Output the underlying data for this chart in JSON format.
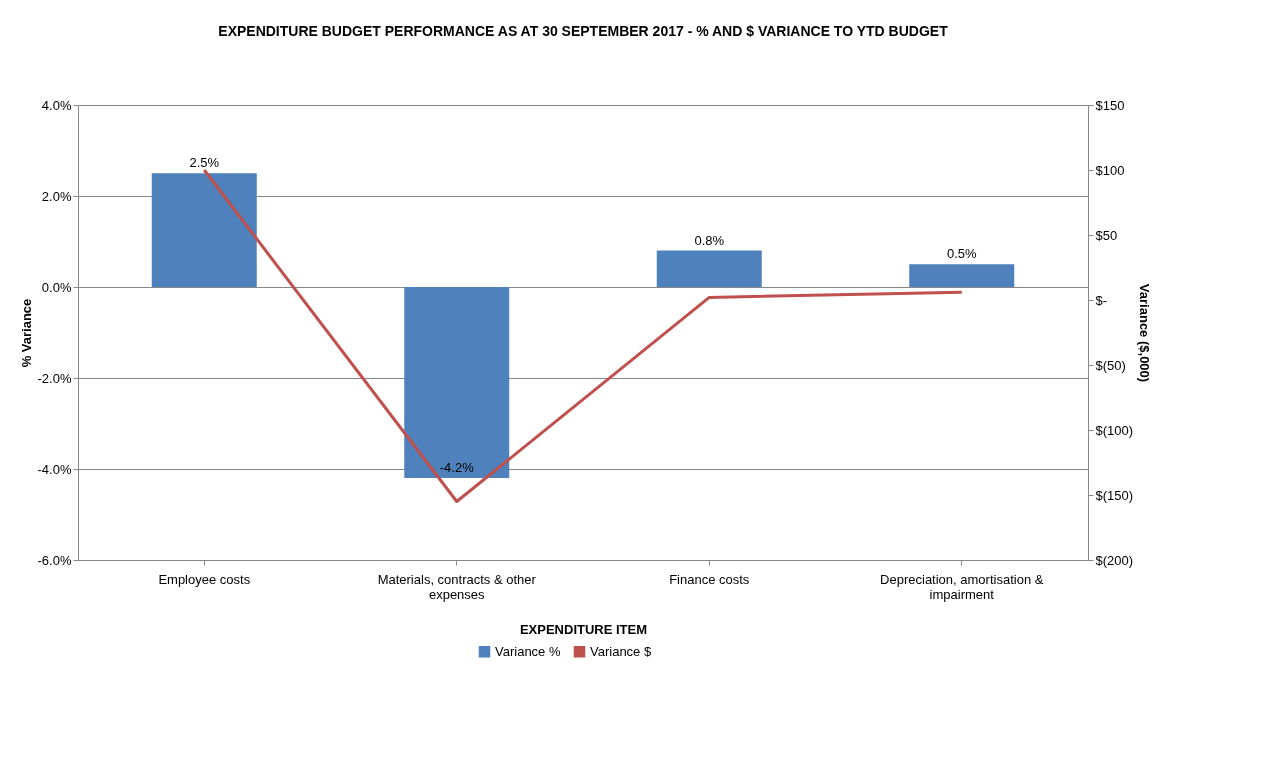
{
  "chart_data": {
    "type": "bar",
    "title": "EXPENDITURE BUDGET PERFORMANCE AS AT 30 SEPTEMBER 2017 - % AND $ VARIANCE TO  YTD BUDGET",
    "xlabel": "EXPENDITURE ITEM",
    "ylabel": "% Variance",
    "y2label": "Variance ($,000)",
    "categories": [
      "Employee costs",
      "Materials, contracts & other expenses",
      "Finance costs",
      "Depreciation, amortisation & impairment"
    ],
    "series": [
      {
        "name": "Variance %",
        "color": "#4f81bd",
        "values": [
          2.5,
          -4.2,
          0.8,
          0.5
        ],
        "value_labels": [
          "2.5%",
          "-4.2%",
          "0.8%",
          "0.5%"
        ]
      },
      {
        "name": "Variance $",
        "type": "line",
        "axis": "y2",
        "color": "#c0504d",
        "values": [
          100,
          -155,
          2,
          6
        ]
      }
    ],
    "ylim": [
      -6,
      4
    ],
    "yticks": [
      {
        "value": -6,
        "label": "-6.0%"
      },
      {
        "value": -4,
        "label": "-4.0%"
      },
      {
        "value": -2,
        "label": "-2.0%"
      },
      {
        "value": 0,
        "label": "0.0%"
      },
      {
        "value": 2,
        "label": "2.0%"
      },
      {
        "value": 4,
        "label": "4.0%"
      }
    ],
    "y2lim": [
      -200,
      150
    ],
    "y2ticks": [
      {
        "value": -200,
        "label": "$(200)"
      },
      {
        "value": -150,
        "label": "$(150)"
      },
      {
        "value": -100,
        "label": "$(100)"
      },
      {
        "value": -50,
        "label": "$(50)"
      },
      {
        "value": 0,
        "label": "$-"
      },
      {
        "value": 50,
        "label": "$50"
      },
      {
        "value": 100,
        "label": "$100"
      },
      {
        "value": 150,
        "label": "$150"
      }
    ],
    "grid": "y",
    "legend": "bottom",
    "marker": "none",
    "line_style": "solid"
  }
}
